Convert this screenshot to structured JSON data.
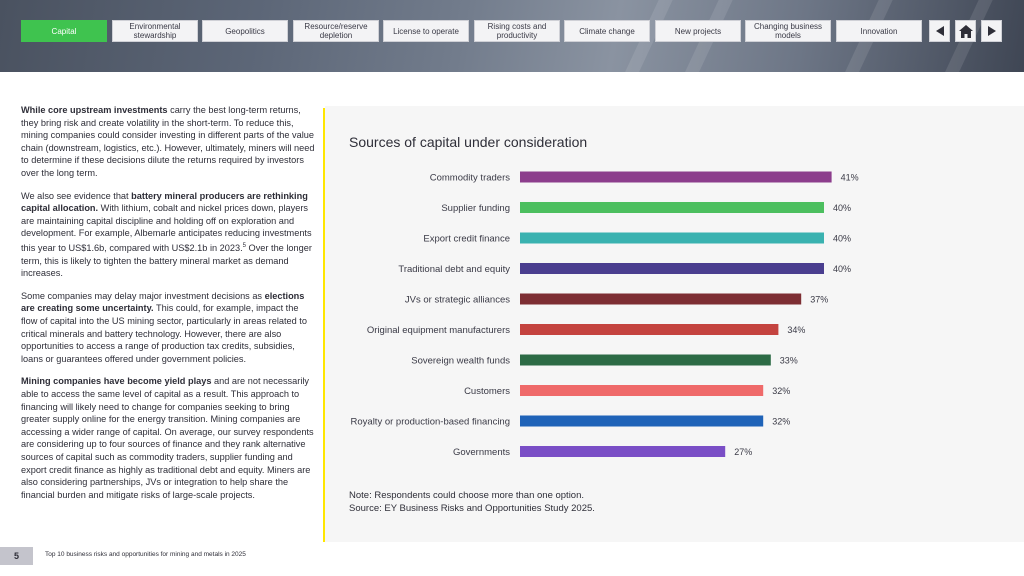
{
  "nav": {
    "tabs": [
      {
        "label": "Capital",
        "active": true
      },
      {
        "label": "Environmental stewardship",
        "active": false
      },
      {
        "label": "Geopolitics",
        "active": false
      },
      {
        "label": "Resource/reserve depletion",
        "active": false
      },
      {
        "label": "License to operate",
        "active": false
      },
      {
        "label": "Rising costs and productivity",
        "active": false
      },
      {
        "label": "Climate change",
        "active": false
      },
      {
        "label": "New projects",
        "active": false
      },
      {
        "label": "Changing business models",
        "active": false
      },
      {
        "label": "Innovation",
        "active": false
      }
    ],
    "prev_icon": "arrow-left-icon",
    "home_icon": "home-icon",
    "next_icon": "arrow-right-icon"
  },
  "body": {
    "p1_bold": "While core upstream investments",
    "p1_rest": " carry the best long-term returns, they bring risk and create volatility in the short-term. To reduce this, mining companies could consider investing in different parts of the value chain (downstream, logistics, etc.). However, ultimately, miners will need to determine if these decisions dilute the returns required by investors over the long term.",
    "p2_pre": "We also see evidence that ",
    "p2_bold": "battery mineral producers are rethinking capital allocation.",
    "p2_rest": " With lithium, cobalt and nickel prices down, players are maintaining capital discipline and holding off on exploration and development. For example, Albemarle anticipates reducing investments this year to US$1.6b, compared with US$2.1b in 2023.",
    "p2_sup": "5",
    "p2_end": " Over the longer term, this is likely to tighten the battery mineral market as demand increases.",
    "p3_pre": "Some companies may delay major investment decisions as ",
    "p3_bold": "elections are creating some uncertainty.",
    "p3_rest": " This could, for example, impact the flow of capital into the US mining sector, particularly in areas related to critical minerals and battery technology. However, there are also opportunities to access a range of production tax credits, subsidies, loans or guarantees offered under government policies.",
    "p4_bold": "Mining companies have become yield plays",
    "p4_rest": " and are not necessarily able to access the same level of capital as a result. This approach to financing will likely need to change for companies seeking to bring greater supply online for the energy transition. Mining companies are accessing a wider range of capital. On average, our survey respondents are considering up to four sources of finance and they rank alternative sources of capital such as commodity traders, supplier funding and export credit finance as highly as traditional debt and equity. Miners are also considering partnerships, JVs or integration to help share the financial burden and mitigate risks of large-scale projects."
  },
  "chart_data": {
    "type": "bar",
    "orientation": "horizontal",
    "title": "Sources of capital under consideration",
    "categories": [
      "Commodity traders",
      "Supplier funding",
      "Export credit finance",
      "Traditional debt and equity",
      "JVs or strategic alliances",
      "Original equipment manufacturers",
      "Sovereign wealth funds",
      "Customers",
      "Royalty or production-based financing",
      "Governments"
    ],
    "values": [
      41,
      40,
      40,
      40,
      37,
      34,
      33,
      32,
      32,
      27
    ],
    "value_labels": [
      "41%",
      "40%",
      "40%",
      "40%",
      "37%",
      "34%",
      "33%",
      "32%",
      "32%",
      "27%"
    ],
    "colors": [
      "#8c3d8c",
      "#4cbf5f",
      "#3ab2b0",
      "#4a3e8f",
      "#7d2e33",
      "#c4433f",
      "#2c6b45",
      "#ef6a6a",
      "#1f63b8",
      "#7a4ec6"
    ],
    "unit": "%",
    "xlim": [
      0,
      42
    ],
    "grid": false
  },
  "chart_note": {
    "note": "Note: Respondents could choose more than one option.",
    "source": "Source: EY Business Risks and Opportunities Study 2025."
  },
  "footer": {
    "page_number": "5",
    "doc_title": "Top 10 business risks and opportunities for mining and metals in 2025"
  }
}
